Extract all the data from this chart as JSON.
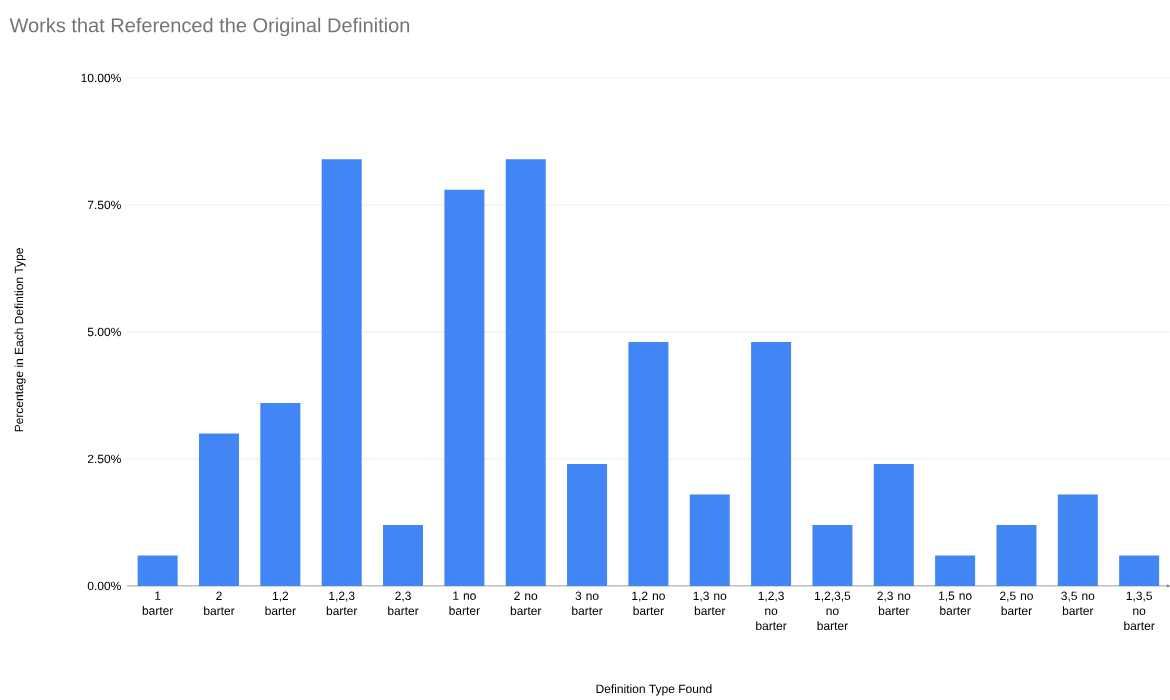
{
  "chart_data": {
    "type": "bar",
    "title": "Works that Referenced the Original Definition",
    "xlabel": "Definition Type Found",
    "ylabel": "Percentage in Each Defintion Type",
    "categories": [
      "1 barter",
      "2 barter",
      "1,2 barter",
      "1,2,3 barter",
      "2,3 barter",
      "1 no barter",
      "2 no barter",
      "3 no barter",
      "1,2 no barter",
      "1,3 no barter",
      "1,2,3 no barter",
      "1,2,3,5 no barter",
      "2,3 no barter",
      "1,5 no barter",
      "2,5 no barter",
      "3,5 no barter",
      "1,3,5 no barter"
    ],
    "values": [
      0.6,
      3.0,
      3.6,
      8.4,
      1.2,
      7.8,
      8.4,
      2.4,
      4.8,
      1.8,
      4.8,
      1.2,
      2.4,
      0.6,
      1.2,
      1.8,
      0.6
    ],
    "color": "#4285f4",
    "ylim": [
      0,
      10
    ],
    "yticks": [
      {
        "value": 0,
        "label": "0.00%"
      },
      {
        "value": 2.5,
        "label": "2.50%"
      },
      {
        "value": 5,
        "label": "5.00%"
      },
      {
        "value": 7.5,
        "label": "7.50%"
      },
      {
        "value": 10,
        "label": "10.00%"
      }
    ],
    "grid": "y"
  }
}
